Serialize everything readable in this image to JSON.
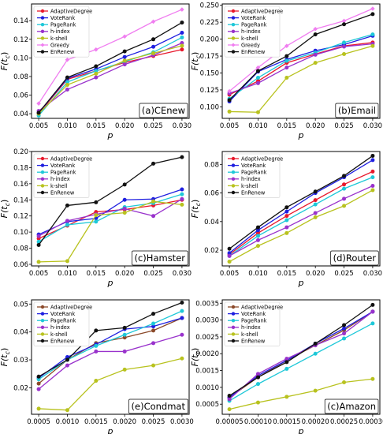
{
  "figure": {
    "colors": {
      "AdaptiveDegree": "#e8192c",
      "VoteRank": "#1f1fe0",
      "PageRank": "#1ec8d8",
      "h-index": "#9932cc",
      "k-shell": "#b8c21e",
      "Greedy": "#f07ef0",
      "EnRenew": "#111111",
      "AdaptiveDegree_alt": "#8b4a2a"
    }
  },
  "chart_data": [
    {
      "type": "line",
      "panel_label": "(a)CEnew",
      "xlabel": "p",
      "ylabel": "F(t_c)",
      "x": [
        0.005,
        0.01,
        0.015,
        0.02,
        0.025,
        0.03
      ],
      "x_ticks": [
        "0.005",
        "0.010",
        "0.015",
        "0.020",
        "0.025",
        "0.030"
      ],
      "ylim": [
        0.035,
        0.158
      ],
      "y_ticks": [
        "0.04",
        "0.06",
        "0.08",
        "0.10",
        "0.12",
        "0.14"
      ],
      "y_tick_values": [
        0.04,
        0.06,
        0.08,
        0.1,
        0.12,
        0.14
      ],
      "legend": "top-left",
      "series": [
        {
          "name": "AdaptiveDegree",
          "color_key": "AdaptiveDegree",
          "values": [
            0.04,
            0.077,
            0.086,
            0.095,
            0.102,
            0.109
          ]
        },
        {
          "name": "VoteRank",
          "color_key": "VoteRank",
          "values": [
            0.041,
            0.078,
            0.088,
            0.101,
            0.112,
            0.127
          ]
        },
        {
          "name": "PageRank",
          "color_key": "PageRank",
          "values": [
            0.038,
            0.074,
            0.086,
            0.096,
            0.106,
            0.122
          ]
        },
        {
          "name": "h-index",
          "color_key": "h-index",
          "values": [
            0.043,
            0.066,
            0.079,
            0.093,
            0.103,
            0.116
          ]
        },
        {
          "name": "k-shell",
          "color_key": "k-shell",
          "values": [
            0.04,
            0.071,
            0.083,
            0.097,
            0.105,
            0.113
          ]
        },
        {
          "name": "Greedy",
          "color_key": "Greedy",
          "values": [
            0.051,
            0.098,
            0.109,
            0.123,
            0.139,
            0.152
          ]
        },
        {
          "name": "EnRenew",
          "color_key": "EnRenew",
          "values": [
            0.041,
            0.079,
            0.091,
            0.107,
            0.12,
            0.138
          ]
        }
      ]
    },
    {
      "type": "line",
      "panel_label": "(b)Email",
      "xlabel": "p",
      "ylabel": "F(t_c)",
      "x": [
        0.005,
        0.01,
        0.015,
        0.02,
        0.025,
        0.03
      ],
      "x_ticks": [
        "0.005",
        "0.010",
        "0.015",
        "0.020",
        "0.025",
        "0.030"
      ],
      "ylim": [
        0.083,
        0.252
      ],
      "y_ticks": [
        "0.100",
        "0.125",
        "0.150",
        "0.175",
        "0.200",
        "0.225",
        "0.250"
      ],
      "y_tick_values": [
        0.1,
        0.125,
        0.15,
        0.175,
        0.2,
        0.225,
        0.25
      ],
      "legend": "top-left",
      "series": [
        {
          "name": "AdaptiveDegree",
          "color_key": "AdaptiveDegree",
          "values": [
            0.118,
            0.138,
            0.165,
            0.178,
            0.19,
            0.195
          ]
        },
        {
          "name": "VoteRank",
          "color_key": "VoteRank",
          "values": [
            0.108,
            0.152,
            0.17,
            0.183,
            0.192,
            0.205
          ]
        },
        {
          "name": "PageRank",
          "color_key": "PageRank",
          "values": [
            0.112,
            0.143,
            0.168,
            0.18,
            0.195,
            0.207
          ]
        },
        {
          "name": "h-index",
          "color_key": "h-index",
          "values": [
            0.12,
            0.135,
            0.158,
            0.177,
            0.189,
            0.193
          ]
        },
        {
          "name": "k-shell",
          "color_key": "k-shell",
          "values": [
            0.093,
            0.092,
            0.143,
            0.165,
            0.178,
            0.19
          ]
        },
        {
          "name": "Greedy",
          "color_key": "Greedy",
          "values": [
            0.123,
            0.158,
            0.19,
            0.215,
            0.227,
            0.245
          ]
        },
        {
          "name": "EnRenew",
          "color_key": "EnRenew",
          "values": [
            0.11,
            0.153,
            0.175,
            0.207,
            0.222,
            0.237
          ]
        }
      ]
    },
    {
      "type": "line",
      "panel_label": "(c)Hamster",
      "xlabel": "p",
      "ylabel": "F(t_c)",
      "x": [
        0.005,
        0.01,
        0.015,
        0.02,
        0.025,
        0.03
      ],
      "x_ticks": [
        "0.005",
        "0.010",
        "0.015",
        "0.020",
        "0.025",
        "0.030"
      ],
      "ylim": [
        0.058,
        0.2
      ],
      "y_ticks": [
        "0.06",
        "0.08",
        "0.10",
        "0.12",
        "0.14",
        "0.16",
        "0.18",
        "0.20"
      ],
      "y_tick_values": [
        0.06,
        0.08,
        0.1,
        0.12,
        0.14,
        0.16,
        0.18,
        0.2
      ],
      "legend": "top-left",
      "series": [
        {
          "name": "AdaptiveDegree",
          "color_key": "AdaptiveDegree",
          "values": [
            0.092,
            0.108,
            0.125,
            0.128,
            0.133,
            0.14
          ]
        },
        {
          "name": "VoteRank",
          "color_key": "VoteRank",
          "values": [
            0.097,
            0.113,
            0.117,
            0.14,
            0.141,
            0.153
          ]
        },
        {
          "name": "PageRank",
          "color_key": "PageRank",
          "values": [
            0.088,
            0.109,
            0.113,
            0.131,
            0.136,
            0.147
          ]
        },
        {
          "name": "h-index",
          "color_key": "h-index",
          "values": [
            0.095,
            0.114,
            0.122,
            0.129,
            0.12,
            0.141
          ]
        },
        {
          "name": "k-shell",
          "color_key": "k-shell",
          "values": [
            0.063,
            0.064,
            0.121,
            0.124,
            0.138,
            0.134
          ]
        },
        {
          "name": "EnRenew",
          "color_key": "EnRenew",
          "values": [
            0.084,
            0.133,
            0.137,
            0.159,
            0.185,
            0.193
          ]
        }
      ]
    },
    {
      "type": "line",
      "panel_label": "(d)Router",
      "xlabel": "p",
      "ylabel": "F(t_c)",
      "x": [
        0.005,
        0.01,
        0.015,
        0.02,
        0.025,
        0.03
      ],
      "x_ticks": [
        "0.005",
        "0.010",
        "0.015",
        "0.020",
        "0.025",
        "0.030"
      ],
      "ylim": [
        0.009,
        0.089
      ],
      "y_ticks": [
        "0.02",
        "0.04",
        "0.06",
        "0.08"
      ],
      "y_tick_values": [
        0.02,
        0.04,
        0.06,
        0.08
      ],
      "legend": "top-left",
      "series": [
        {
          "name": "AdaptiveDegree",
          "color_key": "AdaptiveDegree",
          "values": [
            0.017,
            0.032,
            0.044,
            0.055,
            0.066,
            0.075
          ]
        },
        {
          "name": "VoteRank",
          "color_key": "VoteRank",
          "values": [
            0.018,
            0.034,
            0.047,
            0.06,
            0.071,
            0.083
          ]
        },
        {
          "name": "PageRank",
          "color_key": "PageRank",
          "values": [
            0.016,
            0.03,
            0.041,
            0.052,
            0.063,
            0.071
          ]
        },
        {
          "name": "h-index",
          "color_key": "h-index",
          "values": [
            0.016,
            0.027,
            0.036,
            0.046,
            0.056,
            0.065
          ]
        },
        {
          "name": "k-shell",
          "color_key": "k-shell",
          "values": [
            0.012,
            0.023,
            0.032,
            0.043,
            0.051,
            0.062
          ]
        },
        {
          "name": "EnRenew",
          "color_key": "EnRenew",
          "values": [
            0.021,
            0.036,
            0.05,
            0.061,
            0.072,
            0.086
          ]
        }
      ]
    },
    {
      "type": "line",
      "panel_label": "(e)Condmat",
      "xlabel": "p",
      "ylabel": "F(t_c)",
      "x": [
        0.0005,
        0.001,
        0.0015,
        0.002,
        0.0025,
        0.003
      ],
      "x_ticks": [
        "0.0005",
        "0.0010",
        "0.0015",
        "0.0020",
        "0.0025",
        "0.0030"
      ],
      "ylim": [
        0.0105,
        0.0515
      ],
      "y_ticks": [
        "0.02",
        "0.03",
        "0.04",
        "0.05"
      ],
      "y_tick_values": [
        0.02,
        0.03,
        0.04,
        0.05
      ],
      "legend": "top-left",
      "series": [
        {
          "name": "AdaptiveDegree",
          "color_key": "AdaptiveDegree_alt",
          "values": [
            0.0215,
            0.03,
            0.036,
            0.038,
            0.0405,
            0.045
          ]
        },
        {
          "name": "VoteRank",
          "color_key": "VoteRank",
          "values": [
            0.0235,
            0.031,
            0.0355,
            0.041,
            0.042,
            0.045
          ]
        },
        {
          "name": "PageRank",
          "color_key": "PageRank",
          "values": [
            0.023,
            0.03,
            0.035,
            0.039,
            0.043,
            0.0475
          ]
        },
        {
          "name": "h-index",
          "color_key": "h-index",
          "values": [
            0.0195,
            0.028,
            0.033,
            0.033,
            0.036,
            0.039
          ]
        },
        {
          "name": "k-shell",
          "color_key": "k-shell",
          "values": [
            0.0125,
            0.012,
            0.0225,
            0.0265,
            0.028,
            0.0305
          ]
        },
        {
          "name": "EnRenew",
          "color_key": "EnRenew",
          "values": [
            0.024,
            0.03,
            0.0405,
            0.0415,
            0.0465,
            0.0505
          ]
        }
      ]
    },
    {
      "type": "line",
      "panel_label": "(c)Amazon",
      "xlabel": "p",
      "ylabel": "F(t_c)",
      "x": [
        5e-05,
        0.0001,
        0.00015,
        0.0002,
        0.00025,
        0.0003
      ],
      "x_ticks": [
        "0.00005",
        "0.00010",
        "0.00015",
        "0.00020",
        "0.00025",
        "0.00030"
      ],
      "ylim": [
        0.0002,
        0.0036
      ],
      "y_ticks": [
        "0.0005",
        "0.0010",
        "0.0015",
        "0.0020",
        "0.0025",
        "0.0030",
        "0.0035"
      ],
      "y_tick_values": [
        0.0005,
        0.001,
        0.0015,
        0.002,
        0.0025,
        0.003,
        0.0035
      ],
      "legend": "top-left",
      "series": [
        {
          "name": "AdaptiveDegree",
          "color_key": "AdaptiveDegree_alt",
          "values": [
            0.0007,
            0.0013,
            0.0018,
            0.00225,
            0.0027,
            0.00325
          ]
        },
        {
          "name": "VoteRank",
          "color_key": "VoteRank",
          "values": [
            0.0007,
            0.00135,
            0.0018,
            0.0023,
            0.00275,
            0.00325
          ]
        },
        {
          "name": "PageRank",
          "color_key": "PageRank",
          "values": [
            0.0006,
            0.0011,
            0.00155,
            0.002,
            0.00245,
            0.0029
          ]
        },
        {
          "name": "h-index",
          "color_key": "h-index",
          "values": [
            0.00065,
            0.0014,
            0.00185,
            0.00225,
            0.0026,
            0.00325
          ]
        },
        {
          "name": "k-shell",
          "color_key": "k-shell",
          "values": [
            0.00035,
            0.00055,
            0.00072,
            0.0009,
            0.00115,
            0.00125
          ]
        },
        {
          "name": "EnRenew",
          "color_key": "EnRenew",
          "values": [
            0.00075,
            0.0013,
            0.00175,
            0.0023,
            0.00285,
            0.00345
          ]
        }
      ]
    }
  ]
}
